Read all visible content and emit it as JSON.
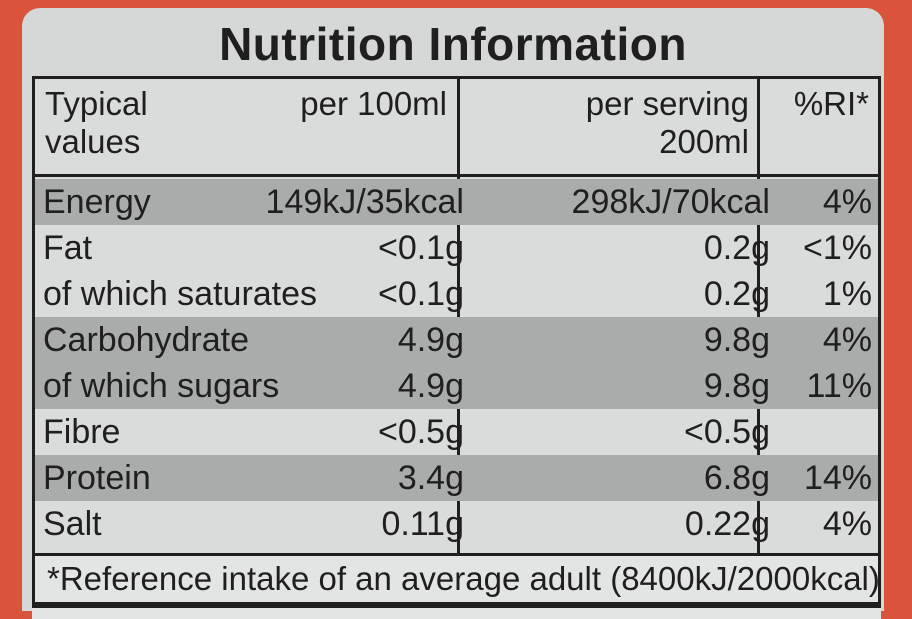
{
  "title": "Nutrition Information",
  "header": {
    "col1_line1": "Typical",
    "col1_line2": "values",
    "col_per100": "per 100ml",
    "col_serving_line1": "per serving",
    "col_serving_line2": "200ml",
    "col_ri": "%RI*"
  },
  "rows": [
    {
      "name": "Energy",
      "per100": "149kJ/35kcal",
      "serving": "298kJ/70kcal",
      "ri": "4%"
    },
    {
      "name": "Fat",
      "per100": "<0.1g",
      "serving": "0.2g",
      "ri": "<1%"
    },
    {
      "name": "of which saturates",
      "per100": "<0.1g",
      "serving": "0.2g",
      "ri": "1%"
    },
    {
      "name": "Carbohydrate",
      "per100": "4.9g",
      "serving": "9.8g",
      "ri": "4%"
    },
    {
      "name": "of which sugars",
      "per100": "4.9g",
      "serving": "9.8g",
      "ri": "11%"
    },
    {
      "name": "Fibre",
      "per100": "<0.5g",
      "serving": "<0.5g",
      "ri": ""
    },
    {
      "name": "Protein",
      "per100": "3.4g",
      "serving": "6.8g",
      "ri": "14%"
    },
    {
      "name": "Salt",
      "per100": "0.11g",
      "serving": "0.22g",
      "ri": "4%"
    }
  ],
  "footnote": "*Reference intake of an average adult (8400kJ/2000kcal)",
  "colors": {
    "background": "#d9543a",
    "label": "#d5d8d7",
    "ink": "#1f1f1f"
  }
}
